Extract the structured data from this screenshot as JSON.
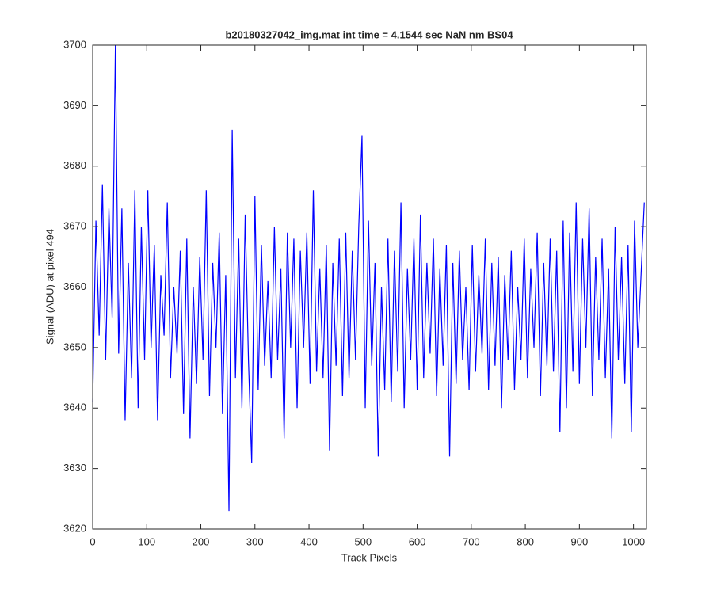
{
  "chart_data": {
    "type": "line",
    "title": "b20180327042_img.mat int time = 4.1544 sec  NaN nm BS04",
    "x_label": "Track Pixels",
    "y_label": "Signal (ADU) at pixel 494",
    "xlim": [
      0,
      1024
    ],
    "ylim": [
      3620,
      3700
    ],
    "xticks": [
      0,
      100,
      200,
      300,
      400,
      500,
      600,
      700,
      800,
      900,
      1000
    ],
    "yticks": [
      3620,
      3630,
      3640,
      3650,
      3660,
      3670,
      3680,
      3690,
      3700
    ],
    "x": [
      0,
      6,
      12,
      18,
      24,
      30,
      36,
      42,
      48,
      54,
      60,
      66,
      72,
      78,
      84,
      90,
      96,
      102,
      108,
      114,
      120,
      126,
      132,
      138,
      144,
      150,
      156,
      162,
      168,
      174,
      180,
      186,
      192,
      198,
      204,
      210,
      216,
      222,
      228,
      234,
      240,
      246,
      252,
      258,
      264,
      270,
      276,
      282,
      288,
      294,
      300,
      306,
      312,
      318,
      324,
      330,
      336,
      342,
      348,
      354,
      360,
      366,
      372,
      378,
      384,
      390,
      396,
      402,
      408,
      414,
      420,
      426,
      432,
      438,
      444,
      450,
      456,
      462,
      468,
      474,
      480,
      486,
      492,
      498,
      504,
      510,
      516,
      522,
      528,
      534,
      540,
      546,
      552,
      558,
      564,
      570,
      576,
      582,
      588,
      594,
      600,
      606,
      612,
      618,
      624,
      630,
      636,
      642,
      648,
      654,
      660,
      666,
      672,
      678,
      684,
      690,
      696,
      702,
      708,
      714,
      720,
      726,
      732,
      738,
      744,
      750,
      756,
      762,
      768,
      774,
      780,
      786,
      792,
      798,
      804,
      810,
      816,
      822,
      828,
      834,
      840,
      846,
      852,
      858,
      864,
      870,
      876,
      882,
      888,
      894,
      900,
      906,
      912,
      918,
      924,
      930,
      936,
      942,
      948,
      954,
      960,
      966,
      972,
      978,
      984,
      990,
      996,
      1002,
      1008,
      1014,
      1020
    ],
    "series": [
      {
        "color": "#0000ff",
        "values": [
          3641,
          3671,
          3652,
          3677,
          3648,
          3673,
          3655,
          3700,
          3649,
          3673,
          3638,
          3664,
          3645,
          3676,
          3640,
          3670,
          3648,
          3676,
          3650,
          3667,
          3638,
          3662,
          3652,
          3674,
          3645,
          3660,
          3649,
          3666,
          3639,
          3668,
          3635,
          3660,
          3644,
          3665,
          3648,
          3676,
          3642,
          3664,
          3650,
          3669,
          3639,
          3662,
          3623,
          3686,
          3645,
          3668,
          3640,
          3672,
          3648,
          3631,
          3675,
          3643,
          3667,
          3647,
          3661,
          3645,
          3670,
          3648,
          3663,
          3635,
          3669,
          3650,
          3668,
          3640,
          3666,
          3650,
          3669,
          3644,
          3676,
          3646,
          3663,
          3645,
          3667,
          3633,
          3664,
          3647,
          3668,
          3642,
          3669,
          3645,
          3666,
          3648,
          3670,
          3685,
          3640,
          3671,
          3647,
          3664,
          3632,
          3660,
          3643,
          3668,
          3641,
          3666,
          3646,
          3674,
          3640,
          3663,
          3648,
          3668,
          3643,
          3672,
          3645,
          3664,
          3649,
          3668,
          3642,
          3663,
          3647,
          3667,
          3632,
          3664,
          3644,
          3666,
          3648,
          3660,
          3643,
          3667,
          3646,
          3662,
          3649,
          3668,
          3643,
          3664,
          3647,
          3665,
          3640,
          3662,
          3648,
          3666,
          3643,
          3660,
          3648,
          3668,
          3645,
          3663,
          3650,
          3669,
          3642,
          3664,
          3647,
          3668,
          3646,
          3666,
          3636,
          3671,
          3640,
          3669,
          3646,
          3674,
          3644,
          3668,
          3650,
          3673,
          3642,
          3665,
          3648,
          3668,
          3645,
          3663,
          3635,
          3670,
          3648,
          3665,
          3644,
          3667,
          3636,
          3671,
          3650,
          3662,
          3674
        ]
      }
    ]
  }
}
